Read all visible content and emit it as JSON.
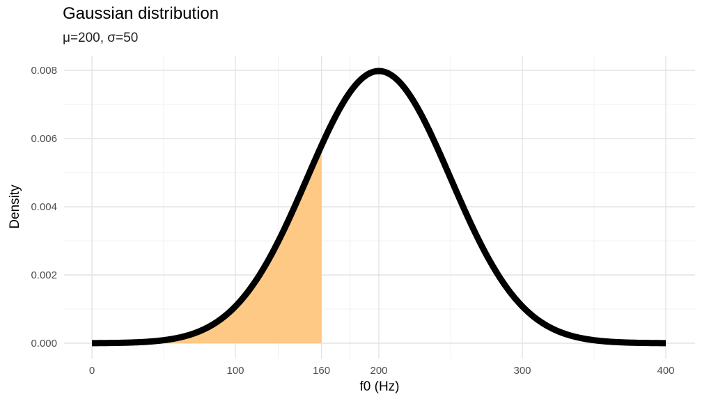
{
  "chart_data": {
    "type": "area",
    "title": "Gaussian distribution",
    "subtitle": "μ=200, σ=50",
    "xlabel": "f0 (Hz)",
    "ylabel": "Density",
    "xlim": [
      0,
      400
    ],
    "ylim": [
      0,
      0.008
    ],
    "x_ticks": [
      0,
      100,
      160,
      200,
      300,
      400
    ],
    "x_tick_labels": [
      "0",
      "100",
      "160",
      "200",
      "300",
      "400"
    ],
    "y_ticks": [
      0,
      0.002,
      0.004,
      0.006,
      0.008
    ],
    "y_tick_labels": [
      "0.000",
      "0.002",
      "0.004",
      "0.006",
      "0.008"
    ],
    "grid": true,
    "distribution": {
      "mean": 200,
      "sd": 50
    },
    "series": [
      {
        "x": [
          0,
          20,
          40,
          60,
          80,
          100,
          120,
          140,
          160,
          180,
          200,
          220,
          240,
          260,
          280,
          300,
          320,
          340,
          360,
          380,
          400
        ],
        "values": [
          2.7e-06,
          1.21e-05,
          4.79e-05,
          0.0001589,
          0.0004568,
          0.0010798,
          0.0022184,
          0.0038837,
          0.0057938,
          0.0073654,
          0.0079788,
          0.0073654,
          0.0057938,
          0.0038837,
          0.0022184,
          0.0010798,
          0.0004568,
          0.0001589,
          4.79e-05,
          1.21e-05,
          2.7e-06
        ],
        "color": "#000000"
      }
    ],
    "shaded_region": {
      "x_from": 0,
      "x_to": 160,
      "color": "#fdc67e"
    }
  }
}
